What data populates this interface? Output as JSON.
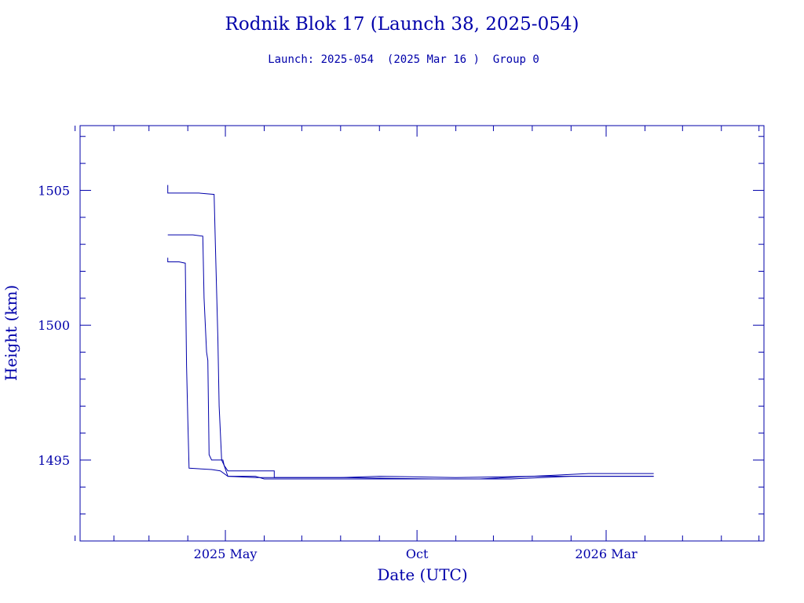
{
  "chart_data": {
    "type": "line",
    "title": "Rodnik Blok 17 (Launch 38, 2025-054)",
    "subtitle": "Launch: 2025-054  (2025 Mar 16 )  Group 0",
    "xlabel": "Date (UTC)",
    "ylabel": "Height (km)",
    "ylim": [
      1492,
      1507.4
    ],
    "xlim": [
      "2025-01-05",
      "2026-07-05"
    ],
    "x_tick_labels": [
      {
        "date": "2025-05-01",
        "label": "2025 May"
      },
      {
        "date": "2025-10-01",
        "label": "Oct"
      },
      {
        "date": "2026-03-01",
        "label": "2026 Mar"
      }
    ],
    "y_tick_labels": [
      {
        "value": 1495,
        "label": "1495"
      },
      {
        "value": 1500,
        "label": "1500"
      },
      {
        "value": 1505,
        "label": "1505"
      }
    ],
    "grid": false,
    "colors": {
      "axis": "#0000aa",
      "series": "#0000aa"
    },
    "series": [
      {
        "points": [
          [
            "2025-03-16",
            1505.2
          ],
          [
            "2025-03-16",
            1504.9
          ],
          [
            "2025-03-20",
            1504.9
          ],
          [
            "2025-04-10",
            1504.9
          ],
          [
            "2025-04-22",
            1504.85
          ],
          [
            "2025-04-23",
            1503.0
          ],
          [
            "2025-04-25",
            1499.5
          ],
          [
            "2025-04-26",
            1497.0
          ],
          [
            "2025-04-28",
            1495.0
          ],
          [
            "2025-04-30",
            1494.8
          ],
          [
            "2025-05-03",
            1494.4
          ],
          [
            "2025-05-25",
            1494.4
          ],
          [
            "2025-06-01",
            1494.3
          ],
          [
            "2025-07-01",
            1494.3
          ],
          [
            "2025-09-01",
            1494.3
          ],
          [
            "2025-10-20",
            1494.3
          ],
          [
            "2025-11-20",
            1494.3
          ],
          [
            "2026-01-01",
            1494.4
          ],
          [
            "2026-02-01",
            1494.4
          ],
          [
            "2026-04-08",
            1494.4
          ]
        ]
      },
      {
        "points": [
          [
            "2025-03-16",
            1503.35
          ],
          [
            "2025-03-20",
            1503.35
          ],
          [
            "2025-04-05",
            1503.35
          ],
          [
            "2025-04-13",
            1503.3
          ],
          [
            "2025-04-14",
            1501.0
          ],
          [
            "2025-04-16",
            1499.0
          ],
          [
            "2025-04-17",
            1498.7
          ],
          [
            "2025-04-18",
            1495.2
          ],
          [
            "2025-04-20",
            1495.0
          ],
          [
            "2025-04-29",
            1495.0
          ],
          [
            "2025-04-30",
            1494.8
          ],
          [
            "2025-05-03",
            1494.6
          ],
          [
            "2025-06-09",
            1494.6
          ],
          [
            "2025-06-09",
            1494.35
          ],
          [
            "2025-08-01",
            1494.35
          ],
          [
            "2025-09-01",
            1494.4
          ],
          [
            "2025-11-01",
            1494.35
          ],
          [
            "2026-01-01",
            1494.4
          ],
          [
            "2026-02-15",
            1494.5
          ],
          [
            "2026-04-08",
            1494.5
          ]
        ]
      },
      {
        "points": [
          [
            "2025-03-16",
            1502.5
          ],
          [
            "2025-03-16",
            1502.35
          ],
          [
            "2025-03-25",
            1502.35
          ],
          [
            "2025-03-30",
            1502.3
          ],
          [
            "2025-03-31",
            1498.5
          ],
          [
            "2025-04-01",
            1496.5
          ],
          [
            "2025-04-02",
            1494.7
          ],
          [
            "2025-04-20",
            1494.65
          ],
          [
            "2025-04-27",
            1494.6
          ],
          [
            "2025-05-03",
            1494.4
          ],
          [
            "2025-05-25",
            1494.35
          ],
          [
            "2025-08-01",
            1494.35
          ],
          [
            "2025-10-15",
            1494.3
          ],
          [
            "2025-12-15",
            1494.3
          ],
          [
            "2026-02-01",
            1494.4
          ],
          [
            "2026-04-08",
            1494.4
          ]
        ]
      }
    ]
  }
}
